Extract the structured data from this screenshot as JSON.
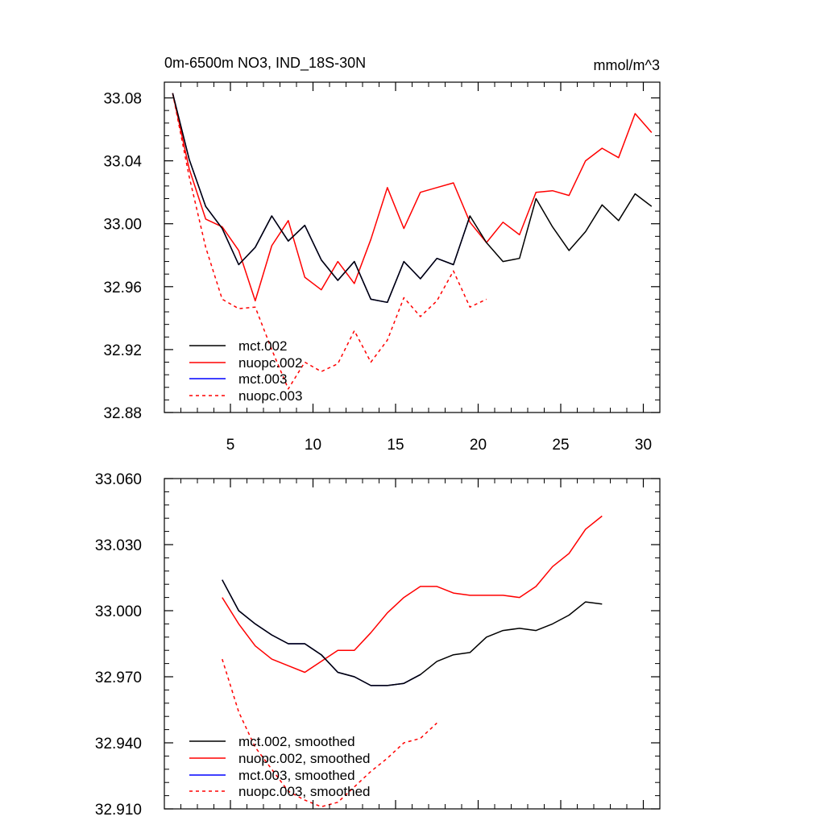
{
  "chart_data": [
    {
      "type": "line",
      "title": "0m-6500m NO3, IND_18S-30N",
      "units": "mmol/m^3",
      "xlim": [
        1,
        31
      ],
      "ylim": [
        32.88,
        33.09
      ],
      "xticks": [
        5,
        10,
        15,
        20,
        25,
        30
      ],
      "xtick_labels": [
        "5",
        "10",
        "15",
        "20",
        "25",
        "30"
      ],
      "yticks": [
        32.88,
        32.92,
        32.96,
        33.0,
        33.04,
        33.08
      ],
      "ytick_labels": [
        "32.88",
        "32.92",
        "32.96",
        "33.00",
        "33.04",
        "33.08"
      ],
      "legend_position": "bottom-left",
      "series": [
        {
          "name": "mct.002",
          "color": "#000000",
          "dash": "solid",
          "x": [
            1.5,
            2.5,
            3.5,
            4.5,
            5.5,
            6.5,
            7.5,
            8.5,
            9.5,
            10.5,
            11.5,
            12.5,
            13.5,
            14.5,
            15.5,
            16.5,
            17.5,
            18.5,
            19.5,
            20.5,
            21.5,
            22.5,
            23.5,
            24.5,
            25.5,
            26.5,
            27.5,
            28.5,
            29.5,
            30.5
          ],
          "values": [
            33.083,
            33.041,
            33.011,
            32.997,
            32.974,
            32.985,
            33.005,
            32.989,
            32.999,
            32.977,
            32.964,
            32.976,
            32.952,
            32.95,
            32.976,
            32.965,
            32.978,
            32.974,
            33.005,
            32.988,
            32.976,
            32.978,
            33.016,
            32.998,
            32.983,
            32.995,
            33.012,
            33.002,
            33.019,
            33.011
          ]
        },
        {
          "name": "nuopc.002",
          "color": "#ff0000",
          "dash": "solid",
          "x": [
            1.5,
            2.5,
            3.5,
            4.5,
            5.5,
            6.5,
            7.5,
            8.5,
            9.5,
            10.5,
            11.5,
            12.5,
            13.5,
            14.5,
            15.5,
            16.5,
            17.5,
            18.5,
            19.5,
            20.5,
            21.5,
            22.5,
            23.5,
            24.5,
            25.5,
            26.5,
            27.5,
            28.5,
            29.5,
            30.5
          ],
          "values": [
            33.083,
            33.035,
            33.003,
            32.998,
            32.983,
            32.951,
            32.986,
            33.002,
            32.966,
            32.958,
            32.976,
            32.962,
            32.99,
            33.023,
            32.997,
            33.02,
            33.023,
            33.026,
            33.001,
            32.988,
            33.001,
            32.993,
            33.02,
            33.021,
            33.018,
            33.04,
            33.048,
            33.042,
            33.07,
            33.058
          ]
        },
        {
          "name": "mct.003",
          "color": "#0000ff",
          "dash": "solid",
          "x": [
            1.5,
            2.5,
            3.5,
            4.5,
            5.5,
            6.5,
            7.5,
            8.5,
            9.5,
            10.5,
            11.5,
            12.5,
            13.5,
            14.5,
            15.5,
            16.5,
            17.5,
            18.5,
            19.5
          ],
          "values": [
            33.083,
            33.041,
            33.011,
            32.997,
            32.974,
            32.985,
            33.005,
            32.989,
            32.999,
            32.977,
            32.964,
            32.976,
            32.952,
            32.95,
            32.976,
            32.965,
            32.978,
            32.974,
            33.005
          ]
        },
        {
          "name": "nuopc.003",
          "color": "#ff0000",
          "dash": "dashed",
          "x": [
            1.5,
            2.5,
            3.5,
            4.5,
            5.5,
            6.5,
            7.5,
            8.5,
            9.5,
            10.5,
            11.5,
            12.5,
            13.5,
            14.5,
            15.5,
            16.5,
            17.5,
            18.5,
            19.5,
            20.5
          ],
          "values": [
            33.083,
            33.03,
            32.985,
            32.952,
            32.946,
            32.947,
            32.92,
            32.895,
            32.912,
            32.906,
            32.911,
            32.932,
            32.912,
            32.926,
            32.953,
            32.941,
            32.951,
            32.97,
            32.947,
            32.952
          ]
        }
      ]
    },
    {
      "type": "line",
      "title": "",
      "xlim": [
        1,
        31
      ],
      "ylim": [
        32.91,
        33.06
      ],
      "xticks": [
        5,
        10,
        15,
        20,
        25,
        30
      ],
      "xtick_labels": [],
      "yticks": [
        32.91,
        32.94,
        32.97,
        33.0,
        33.03,
        33.06
      ],
      "ytick_labels": [
        "32.910",
        "32.940",
        "32.970",
        "33.000",
        "33.030",
        "33.060"
      ],
      "legend_position": "bottom-left",
      "series": [
        {
          "name": "mct.002, smoothed",
          "color": "#000000",
          "dash": "solid",
          "x": [
            4.5,
            5.5,
            6.5,
            7.5,
            8.5,
            9.5,
            10.5,
            11.5,
            12.5,
            13.5,
            14.5,
            15.5,
            16.5,
            17.5,
            18.5,
            19.5,
            20.5,
            21.5,
            22.5,
            23.5,
            24.5,
            25.5,
            26.5,
            27.5
          ],
          "values": [
            33.014,
            33.0,
            32.994,
            32.989,
            32.985,
            32.985,
            32.98,
            32.972,
            32.97,
            32.966,
            32.966,
            32.967,
            32.971,
            32.977,
            32.98,
            32.981,
            32.988,
            32.991,
            32.992,
            32.991,
            32.994,
            32.998,
            33.004,
            33.003
          ]
        },
        {
          "name": "nuopc.002, smoothed",
          "color": "#ff0000",
          "dash": "solid",
          "x": [
            4.5,
            5.5,
            6.5,
            7.5,
            8.5,
            9.5,
            10.5,
            11.5,
            12.5,
            13.5,
            14.5,
            15.5,
            16.5,
            17.5,
            18.5,
            19.5,
            20.5,
            21.5,
            22.5,
            23.5,
            24.5,
            25.5,
            26.5,
            27.5
          ],
          "values": [
            33.006,
            32.994,
            32.984,
            32.978,
            32.975,
            32.972,
            32.977,
            32.982,
            32.982,
            32.99,
            32.999,
            33.006,
            33.011,
            33.011,
            33.008,
            33.007,
            33.007,
            33.007,
            33.006,
            33.011,
            33.02,
            33.026,
            33.037,
            33.043
          ]
        },
        {
          "name": "mct.003, smoothed",
          "color": "#0000ff",
          "dash": "solid",
          "x": [
            4.5,
            5.5,
            6.5,
            7.5,
            8.5,
            9.5,
            10.5,
            11.5,
            12.5,
            13.5,
            14.5,
            15.5,
            16.5
          ],
          "values": [
            33.014,
            33.0,
            32.994,
            32.989,
            32.985,
            32.985,
            32.98,
            32.972,
            32.97,
            32.966,
            32.966,
            32.967,
            32.971
          ]
        },
        {
          "name": "nuopc.003, smoothed",
          "color": "#ff0000",
          "dash": "dashed",
          "x": [
            4.5,
            5.5,
            6.5,
            7.5,
            8.5,
            9.5,
            10.5,
            11.5,
            12.5,
            13.5,
            14.5,
            15.5,
            16.5,
            17.5
          ],
          "values": [
            32.978,
            32.954,
            32.938,
            32.928,
            32.918,
            32.914,
            32.911,
            32.913,
            32.92,
            32.927,
            32.933,
            32.94,
            32.942,
            32.949
          ]
        }
      ]
    }
  ]
}
